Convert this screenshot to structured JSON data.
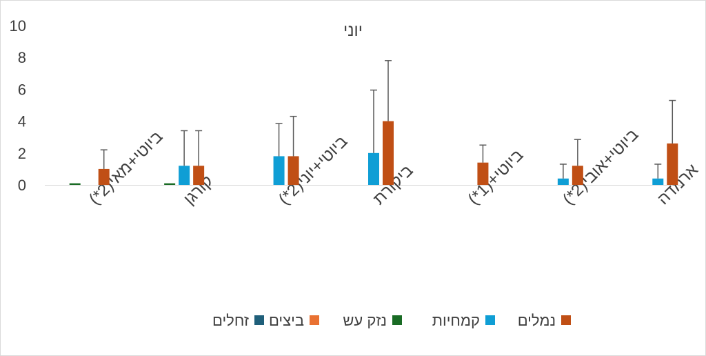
{
  "chart_data": {
    "type": "bar",
    "title": "יוני",
    "xlabel": "",
    "ylabel": "",
    "ylim": [
      0,
      10
    ],
    "yticks": [
      0,
      2,
      4,
      6,
      8,
      10
    ],
    "grid": false,
    "legend_position": "bottom",
    "categories": [
      "ביוטי+מאי(2*)",
      "קורגן",
      "ביוטי+יוני(2*)",
      "ביקורת",
      "ביוטי+(1*)",
      "ביוטי+אובי(2*)",
      "ארמדה"
    ],
    "series": [
      {
        "name": "זחלים",
        "color": "#1f5f7a",
        "values": [
          0,
          0,
          0,
          0,
          0,
          0,
          0
        ],
        "errors": [
          0,
          0,
          0,
          0,
          0,
          0,
          0
        ]
      },
      {
        "name": "ביצים",
        "color": "#e97132",
        "values": [
          0,
          0,
          0,
          0,
          0,
          0,
          0
        ],
        "errors": [
          0,
          0,
          0,
          0,
          0,
          0,
          0
        ]
      },
      {
        "name": "נזק עש",
        "color": "#196b24",
        "values": [
          0.1,
          0.1,
          0,
          0,
          0,
          0,
          0
        ],
        "errors": [
          0,
          0,
          0,
          0,
          0,
          0,
          0
        ]
      },
      {
        "name": "קמחיות",
        "color": "#0f9ed5",
        "values": [
          0,
          1.2,
          1.8,
          2.0,
          0,
          0.4,
          0.4
        ],
        "errors": [
          0,
          2.2,
          2.05,
          3.95,
          0,
          0.9,
          0.9
        ]
      },
      {
        "name": "נמלים",
        "color": "#c04f15",
        "values": [
          1.0,
          1.2,
          1.8,
          4.0,
          1.4,
          1.2,
          2.6
        ],
        "errors": [
          1.2,
          2.2,
          2.5,
          3.8,
          1.1,
          1.65,
          2.7
        ]
      }
    ]
  }
}
